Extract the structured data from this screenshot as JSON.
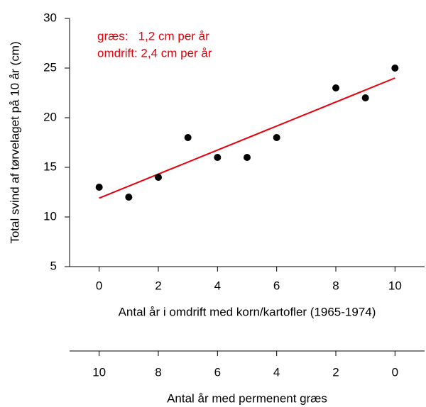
{
  "chart_data": {
    "type": "scatter",
    "y_label": "Total svind af tørvelaget på 10 år (cm)",
    "x_label": "Antal år i omdrift med korn/kartofler (1965-1974)",
    "x2_label": "Antal år med permenent græs",
    "annotations": [
      "græs:   1,2 cm per år",
      "omdrift: 2,4 cm per år"
    ],
    "annotation_color": "#e8000b",
    "xlim": [
      -1,
      11
    ],
    "xticks": [
      0,
      2,
      4,
      6,
      8,
      10
    ],
    "x2lim": [
      11,
      -1
    ],
    "x2ticks": [
      10,
      8,
      6,
      4,
      2,
      0
    ],
    "ylim": [
      5,
      30
    ],
    "yticks": [
      5,
      10,
      15,
      20,
      25,
      30
    ],
    "series": [
      {
        "type": "scatter",
        "color": "#000000",
        "x": [
          0,
          1,
          2,
          3,
          4,
          5,
          6,
          8,
          9,
          10
        ],
        "values": [
          13,
          12,
          14,
          18,
          16,
          16,
          18,
          23,
          22,
          25
        ]
      },
      {
        "type": "line",
        "color": "#e8000b",
        "x": [
          0,
          10
        ],
        "values": [
          11.9,
          24
        ]
      }
    ]
  }
}
